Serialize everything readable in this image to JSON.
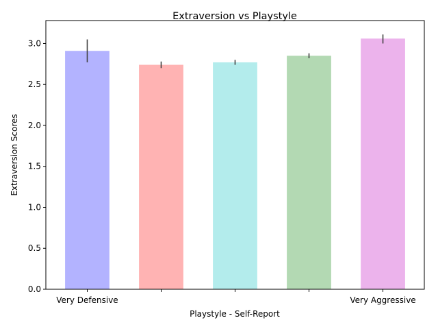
{
  "chart_data": {
    "type": "bar",
    "title": "Extraversion vs Playstyle",
    "xlabel": "Playstyle - Self-Report",
    "ylabel": "Extraversion Scores",
    "categories": [
      "Very Defensive",
      "",
      "",
      "",
      "Very Aggressive"
    ],
    "values": [
      2.91,
      2.74,
      2.77,
      2.85,
      3.06
    ],
    "error_low": [
      2.77,
      2.7,
      2.74,
      2.82,
      3.0
    ],
    "error_high": [
      3.05,
      2.78,
      2.8,
      2.88,
      3.11
    ],
    "colors": [
      "#b3b3ff",
      "#ffb3b3",
      "#b3ecec",
      "#b3d9b3",
      "#ecb3ec"
    ],
    "error_color": "#404040",
    "ylim": [
      0,
      3.28
    ],
    "yticks": [
      "0.0",
      "0.5",
      "1.0",
      "1.5",
      "2.0",
      "2.5",
      "3.0"
    ],
    "grid": false,
    "legend": "none"
  }
}
